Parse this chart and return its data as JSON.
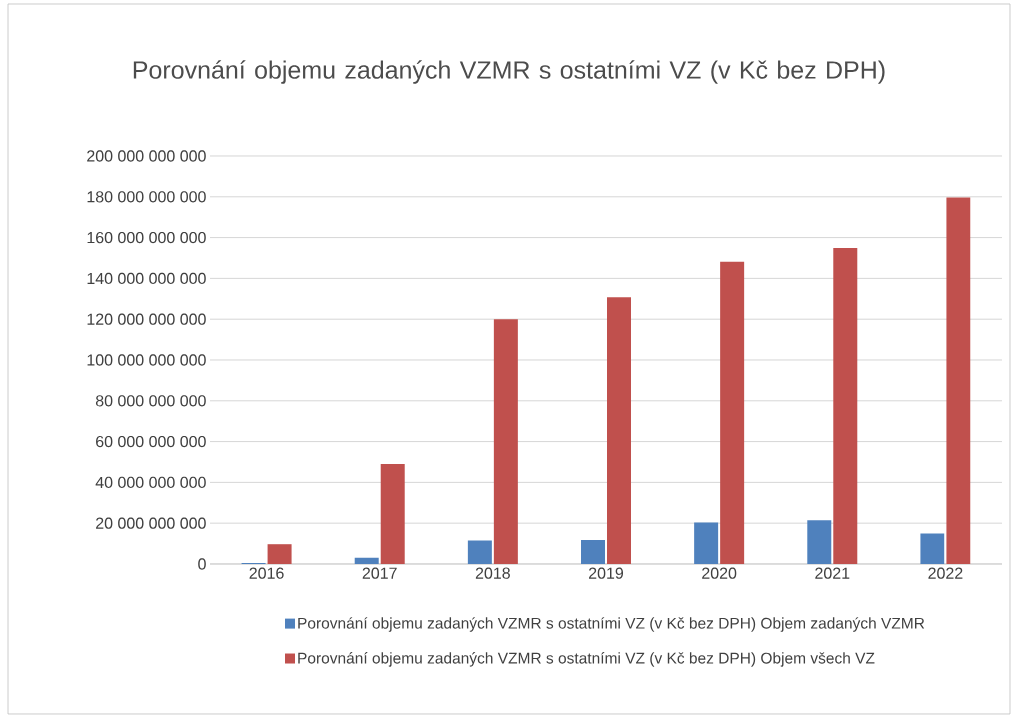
{
  "chart_data": {
    "type": "bar",
    "title": "Porovnání objemu zadaných VZMR s ostatními VZ (v Kč bez DPH)",
    "categories": [
      "2016",
      "2017",
      "2018",
      "2019",
      "2020",
      "2021",
      "2022"
    ],
    "series": [
      {
        "name": "Porovnání objemu zadaných VZMR s ostatními VZ (v Kč bez DPH) Objem zadaných VZMR",
        "color": "#4f81bd",
        "values": [
          500000000,
          3000000000,
          11500000000,
          11800000000,
          20300000000,
          21500000000,
          14900000000
        ]
      },
      {
        "name": "Porovnání objemu zadaných VZMR s ostatními VZ (v Kč bez DPH) Objem všech VZ",
        "color": "#c0504d",
        "values": [
          9700000000,
          49000000000,
          120000000000,
          130800000000,
          148200000000,
          154900000000,
          179700000000
        ]
      }
    ],
    "ylim": [
      0,
      200000000000
    ],
    "yticks": [
      0,
      {
        "value": 20000000000,
        "label": "20 000 000 000"
      },
      {
        "value": 40000000000,
        "label": "40 000 000 000"
      },
      {
        "value": 60000000000,
        "label": "60 000 000 000"
      },
      {
        "value": 80000000000,
        "label": "80 000 000 000"
      },
      {
        "value": 100000000000,
        "label": "100 000 000 000"
      },
      {
        "value": 120000000000,
        "label": "120 000 000 000"
      },
      {
        "value": 140000000000,
        "label": "140 000 000 000"
      },
      {
        "value": 160000000000,
        "label": "160 000 000 000"
      },
      {
        "value": 180000000000,
        "label": "180 000 000 000"
      },
      {
        "value": 200000000000,
        "label": "200 000 000 000"
      }
    ],
    "grid": "y",
    "legend": "bottom"
  }
}
